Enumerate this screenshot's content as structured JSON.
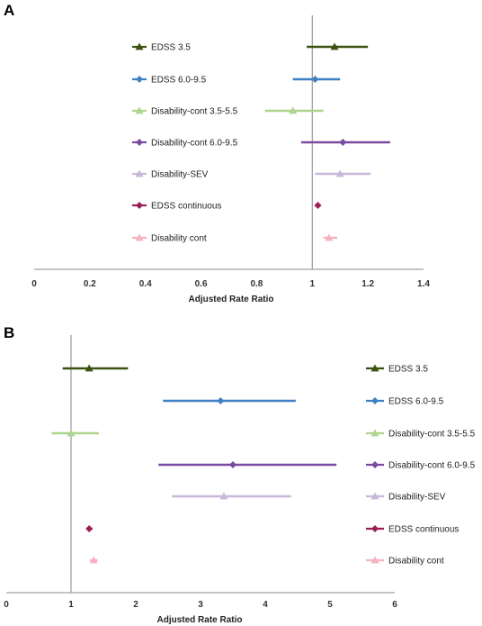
{
  "chart_data": [
    {
      "panel": "A",
      "type": "forest",
      "xlabel": "Adjusted Rate Ratio",
      "xlim": [
        0,
        1.4
      ],
      "xticks": [
        "0",
        "0.2",
        "0.4",
        "0.6",
        "0.8",
        "1",
        "1.2",
        "1.4"
      ],
      "reference_line": 1,
      "legend_position": "left",
      "series": [
        {
          "name": "EDSS 3.5",
          "color": "#3b5213",
          "marker": "triangle",
          "estimate": 1.08,
          "lower": 0.98,
          "upper": 1.2
        },
        {
          "name": "EDSS 6.0-9.5",
          "color": "#3f7fc4",
          "marker": "diamond",
          "estimate": 1.01,
          "lower": 0.93,
          "upper": 1.1
        },
        {
          "name": "Disability-cont 3.5-5.5",
          "color": "#aed48e",
          "marker": "triangle",
          "estimate": 0.93,
          "lower": 0.83,
          "upper": 1.04
        },
        {
          "name": "Disability-cont 6.0-9.5",
          "color": "#7a4aa0",
          "marker": "diamond",
          "estimate": 1.11,
          "lower": 0.96,
          "upper": 1.28
        },
        {
          "name": "Disability-SEV",
          "color": "#c8b8dc",
          "marker": "triangle",
          "estimate": 1.1,
          "lower": 1.01,
          "upper": 1.21
        },
        {
          "name": "EDSS continuous",
          "color": "#9c1f55",
          "marker": "diamond",
          "estimate": 1.02,
          "lower": 1.01,
          "upper": 1.03
        },
        {
          "name": "Disability cont",
          "color": "#f4b3bf",
          "marker": "triangle",
          "estimate": 1.06,
          "lower": 1.04,
          "upper": 1.09
        }
      ]
    },
    {
      "panel": "B",
      "type": "forest",
      "xlabel": "Adjusted Rate Ratio",
      "xlim": [
        0,
        6
      ],
      "xticks": [
        "0",
        "1",
        "2",
        "3",
        "4",
        "5",
        "6"
      ],
      "reference_line": 1,
      "legend_position": "right",
      "series": [
        {
          "name": "EDSS 3.5",
          "color": "#3b5213",
          "marker": "triangle",
          "estimate": 1.28,
          "lower": 0.87,
          "upper": 1.88
        },
        {
          "name": "EDSS 6.0-9.5",
          "color": "#3f7fc4",
          "marker": "diamond",
          "estimate": 3.31,
          "lower": 2.42,
          "upper": 4.47
        },
        {
          "name": "Disability-cont 3.5-5.5",
          "color": "#aed48e",
          "marker": "triangle",
          "estimate": 1.0,
          "lower": 0.7,
          "upper": 1.43
        },
        {
          "name": "Disability-cont 6.0-9.5",
          "color": "#7a4aa0",
          "marker": "diamond",
          "estimate": 3.5,
          "lower": 2.35,
          "upper": 5.1
        },
        {
          "name": "Disability-SEV",
          "color": "#c8b8dc",
          "marker": "triangle",
          "estimate": 3.36,
          "lower": 2.56,
          "upper": 4.4
        },
        {
          "name": "EDSS continuous",
          "color": "#9c1f55",
          "marker": "diamond",
          "estimate": 1.28,
          "lower": 1.24,
          "upper": 1.33
        },
        {
          "name": "Disability cont",
          "color": "#f4b3bf",
          "marker": "triangle",
          "estimate": 1.35,
          "lower": 1.29,
          "upper": 1.41
        }
      ]
    }
  ]
}
